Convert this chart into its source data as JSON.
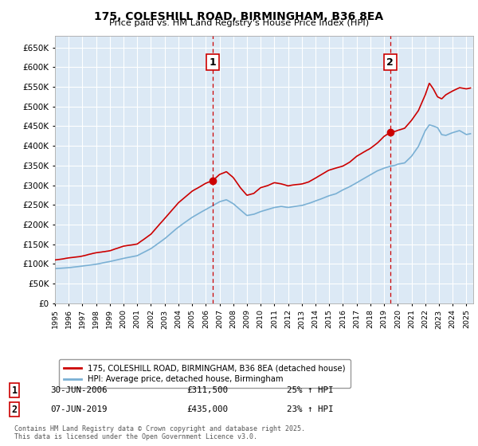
{
  "title": "175, COLESHILL ROAD, BIRMINGHAM, B36 8EA",
  "subtitle": "Price paid vs. HM Land Registry's House Price Index (HPI)",
  "ylabel_ticks": [
    "£0",
    "£50K",
    "£100K",
    "£150K",
    "£200K",
    "£250K",
    "£300K",
    "£350K",
    "£400K",
    "£450K",
    "£500K",
    "£550K",
    "£600K",
    "£650K"
  ],
  "ytick_values": [
    0,
    50000,
    100000,
    150000,
    200000,
    250000,
    300000,
    350000,
    400000,
    450000,
    500000,
    550000,
    600000,
    650000
  ],
  "ylim": [
    0,
    680000
  ],
  "xlim_start": 1995.0,
  "xlim_end": 2025.5,
  "background_color": "#dce9f5",
  "fig_background": "#ffffff",
  "grid_color": "#ffffff",
  "red_line_color": "#cc0000",
  "blue_line_color": "#7ab0d4",
  "marker_color": "#cc0000",
  "vline_color": "#cc0000",
  "annotation_box_color": "#ffffff",
  "annotation_box_edge": "#cc0000",
  "legend_label_red": "175, COLESHILL ROAD, BIRMINGHAM, B36 8EA (detached house)",
  "legend_label_blue": "HPI: Average price, detached house, Birmingham",
  "purchase1_date": "30-JUN-2006",
  "purchase1_price": "£311,500",
  "purchase1_hpi": "25% ↑ HPI",
  "purchase1_year": 2006.5,
  "purchase1_value": 311500,
  "purchase2_date": "07-JUN-2019",
  "purchase2_price": "£435,000",
  "purchase2_hpi": "23% ↑ HPI",
  "purchase2_year": 2019.44,
  "purchase2_value": 435000,
  "footnote": "Contains HM Land Registry data © Crown copyright and database right 2025.\nThis data is licensed under the Open Government Licence v3.0.",
  "xtick_years": [
    1995,
    1996,
    1997,
    1998,
    1999,
    2000,
    2001,
    2002,
    2003,
    2004,
    2005,
    2006,
    2007,
    2008,
    2009,
    2010,
    2011,
    2012,
    2013,
    2014,
    2015,
    2016,
    2017,
    2018,
    2019,
    2020,
    2021,
    2022,
    2023,
    2024,
    2025
  ]
}
